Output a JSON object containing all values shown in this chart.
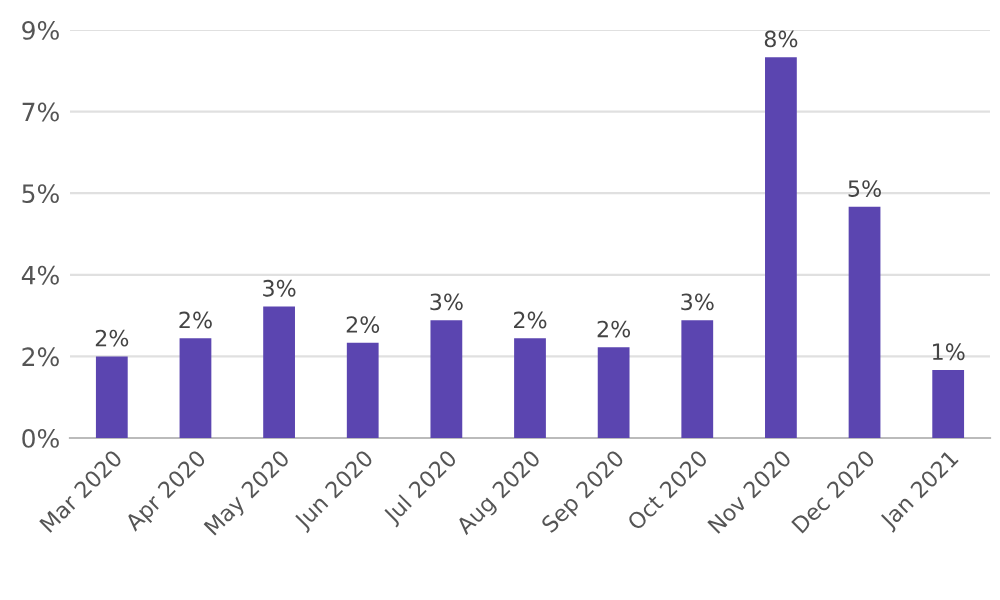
{
  "chart_data": {
    "type": "bar",
    "categories": [
      "Mar 2020",
      "Apr 2020",
      "May 2020",
      "Jun 2020",
      "Jul 2020",
      "Aug 2020",
      "Sep 2020",
      "Oct 2020",
      "Nov 2020",
      "Dec 2020",
      "Jan 2021"
    ],
    "values": [
      1.8,
      2.2,
      2.9,
      2.1,
      2.6,
      2.2,
      2.0,
      2.6,
      8.4,
      5.1,
      1.5
    ],
    "value_labels": [
      "2%",
      "2%",
      "3%",
      "2%",
      "3%",
      "2%",
      "2%",
      "3%",
      "8%",
      "5%",
      "1%"
    ],
    "color": "#5b45b0",
    "ylim": [
      0,
      9
    ],
    "yticks": [
      {
        "value": 0,
        "label": "0%"
      },
      {
        "value": 1.8,
        "label": "2%"
      },
      {
        "value": 3.6,
        "label": "4%"
      },
      {
        "value": 5.4,
        "label": "5%"
      },
      {
        "value": 7.2,
        "label": "7%"
      },
      {
        "value": 9,
        "label": "9%"
      }
    ],
    "grid": "y"
  }
}
